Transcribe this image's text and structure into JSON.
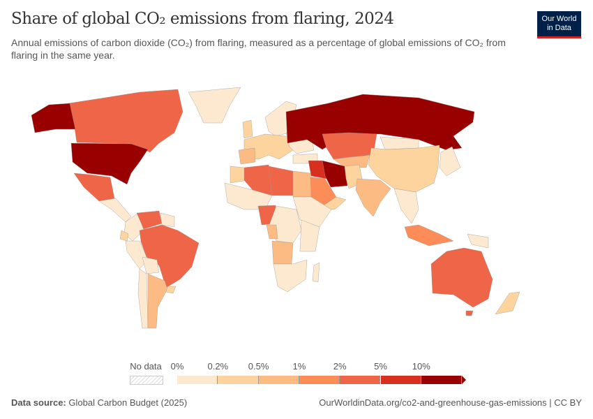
{
  "header": {
    "title": "Share of global CO₂ emissions from flaring, 2024",
    "subtitle": "Annual emissions of carbon dioxide (CO₂) from flaring, measured as a percentage of global emissions of CO₂ from flaring in the same year.",
    "logo_line1": "Our World",
    "logo_line2": "in Data"
  },
  "legend": {
    "no_data": "No data",
    "ticks": [
      "0%",
      "0.2%",
      "0.5%",
      "1%",
      "2%",
      "5%",
      "10%"
    ],
    "colors": [
      "#fde9cf",
      "#fdd49e",
      "#fdbb84",
      "#fc8d59",
      "#ef6548",
      "#d7301f",
      "#990000"
    ]
  },
  "footer": {
    "source_label": "Data source:",
    "source": "Global Carbon Budget (2025)",
    "url": "OurWorldinData.org/co2-and-greenhouse-gas-emissions | CC BY"
  }
}
